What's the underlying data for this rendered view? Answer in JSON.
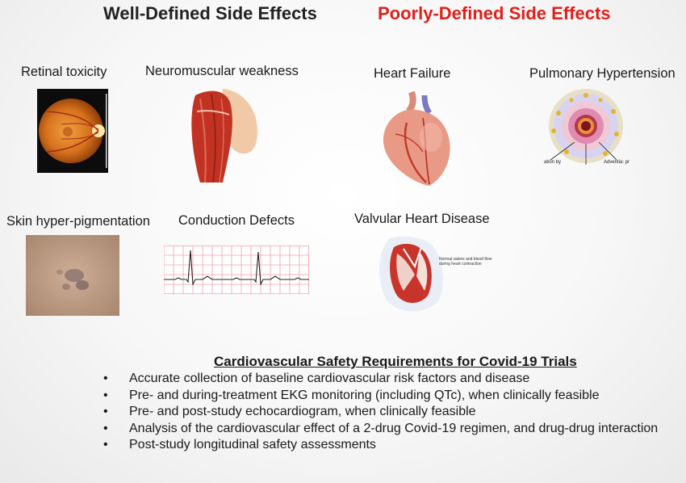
{
  "headings": {
    "well_defined": "Well-Defined Side Effects",
    "poorly_defined": "Poorly-Defined Side Effects"
  },
  "panels": {
    "retinal_toxicity": "Retinal toxicity",
    "neuromuscular_weakness": "Neuromuscular weakness",
    "heart_failure": "Heart Failure",
    "pulmonary_hypertension": "Pulmonary Hypertension",
    "skin_hyperpigmentation": "Skin hyper-pigmentation",
    "conduction_defects": "Conduction Defects",
    "valvular_heart_disease": "Valvular Heart Disease"
  },
  "figure_text": {
    "pulm_left": "ation by",
    "pulm_right": "Adventia: pr",
    "valve_caption_1": "Normal valves and blood flow",
    "valve_caption_2": "during heart contraction"
  },
  "requirements": {
    "title": "Cardiovascular Safety Requirements for Covid-19 Trials",
    "items": [
      "Accurate collection of baseline cardiovascular risk factors and disease",
      "Pre- and during-treatment EKG monitoring (including QTc), when clinically feasible",
      "Pre- and post-study echocardiogram, when clinically feasible",
      "Analysis of the cardiovascular effect of a 2-drug Covid-19 regimen, and drug-drug interaction",
      "Post-study longitudinal safety assessments"
    ]
  },
  "colors": {
    "accent_red": "#e0201b",
    "ekg_grid": "#f2a0ad"
  }
}
